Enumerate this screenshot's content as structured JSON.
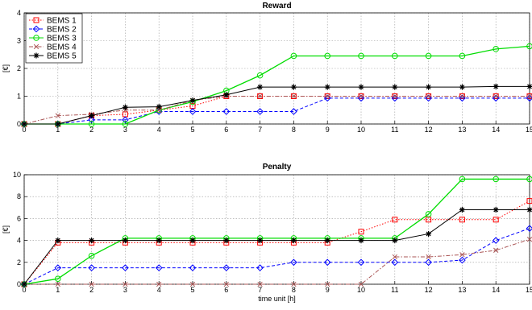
{
  "chart_data": [
    {
      "type": "line",
      "title": "Reward",
      "xlabel": "",
      "ylabel": "[€]",
      "xlim": [
        0,
        15
      ],
      "ylim": [
        0,
        4
      ],
      "xticks": [
        0,
        1,
        2,
        3,
        4,
        5,
        6,
        7,
        8,
        9,
        10,
        11,
        12,
        13,
        14,
        15
      ],
      "yticks": [
        0,
        1,
        2,
        3,
        4
      ],
      "grid": true,
      "legend": "top-left",
      "x": [
        0,
        1,
        2,
        3,
        4,
        5,
        6,
        7,
        8,
        9,
        10,
        11,
        12,
        13,
        14,
        15
      ],
      "series": [
        {
          "name": "BEMS 1",
          "color": "#ff0000",
          "marker": "square",
          "dash": "dotted",
          "values": [
            0,
            0,
            0.3,
            0.35,
            0.5,
            0.65,
            1.0,
            1.0,
            1.0,
            1.0,
            1.0,
            1.0,
            1.0,
            1.0,
            1.0,
            1.0
          ]
        },
        {
          "name": "BEMS 2",
          "color": "#0000ff",
          "marker": "diamond",
          "dash": "dashed",
          "values": [
            0,
            0,
            0.15,
            0.15,
            0.45,
            0.45,
            0.45,
            0.45,
            0.45,
            0.93,
            0.93,
            0.93,
            0.93,
            0.93,
            0.93,
            0.93
          ]
        },
        {
          "name": "BEMS 3",
          "color": "#00dd00",
          "marker": "circle",
          "dash": "solid",
          "values": [
            0,
            0,
            0,
            0,
            0.5,
            0.8,
            1.2,
            1.75,
            2.45,
            2.45,
            2.45,
            2.45,
            2.45,
            2.45,
            2.7,
            2.8
          ]
        },
        {
          "name": "BEMS 4",
          "color": "#aa5555",
          "marker": "x",
          "dash": "dashdot",
          "values": [
            0,
            0.3,
            0.35,
            0.5,
            0.5,
            0.85,
            1.0,
            1.0,
            1.0,
            1.0,
            1.0,
            1.0,
            1.0,
            1.0,
            1.0,
            1.0
          ]
        },
        {
          "name": "BEMS 5",
          "color": "#000000",
          "marker": "star",
          "dash": "solid",
          "values": [
            0,
            0,
            0.3,
            0.6,
            0.62,
            0.85,
            1.05,
            1.33,
            1.33,
            1.33,
            1.33,
            1.33,
            1.33,
            1.33,
            1.35,
            1.35
          ]
        }
      ]
    },
    {
      "type": "line",
      "title": "Penalty",
      "xlabel": "time unit [h]",
      "ylabel": "[€]",
      "xlim": [
        0,
        15
      ],
      "ylim": [
        0,
        10
      ],
      "xticks": [
        0,
        1,
        2,
        3,
        4,
        5,
        6,
        7,
        8,
        9,
        10,
        11,
        12,
        13,
        14,
        15
      ],
      "yticks": [
        0,
        2,
        4,
        6,
        8,
        10
      ],
      "grid": true,
      "x": [
        0,
        1,
        2,
        3,
        4,
        5,
        6,
        7,
        8,
        9,
        10,
        11,
        12,
        13,
        14,
        15
      ],
      "series": [
        {
          "name": "BEMS 1",
          "color": "#ff0000",
          "marker": "square",
          "dash": "dotted",
          "values": [
            0,
            3.8,
            3.8,
            3.8,
            3.8,
            3.8,
            3.8,
            3.8,
            3.8,
            3.8,
            4.8,
            5.9,
            5.9,
            5.9,
            5.9,
            7.6
          ]
        },
        {
          "name": "BEMS 2",
          "color": "#0000ff",
          "marker": "diamond",
          "dash": "dashed",
          "values": [
            0,
            1.5,
            1.5,
            1.5,
            1.5,
            1.5,
            1.5,
            1.5,
            2.0,
            2.0,
            2.0,
            2.0,
            2.0,
            2.2,
            4.0,
            5.1
          ]
        },
        {
          "name": "BEMS 3",
          "color": "#00dd00",
          "marker": "circle",
          "dash": "solid",
          "values": [
            0,
            0.5,
            2.6,
            4.2,
            4.2,
            4.2,
            4.2,
            4.2,
            4.2,
            4.2,
            4.2,
            4.2,
            6.4,
            9.6,
            9.6,
            9.6
          ]
        },
        {
          "name": "BEMS 4",
          "color": "#aa5555",
          "marker": "x",
          "dash": "dashdot",
          "values": [
            0,
            0,
            0,
            0,
            0,
            0,
            0,
            0,
            0,
            0,
            0,
            2.5,
            2.5,
            2.7,
            3.1,
            4.1
          ]
        },
        {
          "name": "BEMS 5",
          "color": "#000000",
          "marker": "star",
          "dash": "solid",
          "values": [
            0,
            4.0,
            4.0,
            4.0,
            4.0,
            4.0,
            4.0,
            4.0,
            4.0,
            4.0,
            4.0,
            4.0,
            4.6,
            6.8,
            6.8,
            6.8
          ]
        }
      ]
    }
  ]
}
